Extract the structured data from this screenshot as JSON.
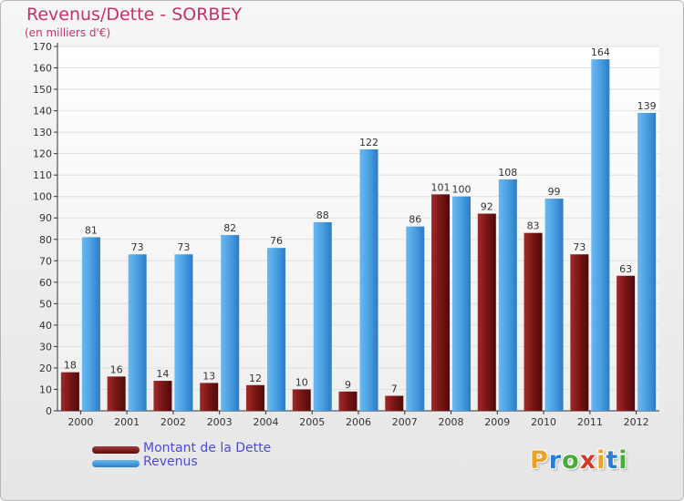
{
  "chart_data": {
    "type": "bar",
    "title": "Revenus/Dette - SORBEY",
    "subtitle": "(en milliers d'€)",
    "xlabel": "",
    "ylabel": "",
    "ylim": [
      0,
      170
    ],
    "ytick_step": 10,
    "categories": [
      "2000",
      "2001",
      "2002",
      "2003",
      "2004",
      "2005",
      "2006",
      "2007",
      "2008",
      "2009",
      "2010",
      "2011",
      "2012"
    ],
    "series": [
      {
        "name": "Montant de la Dette",
        "color": "#8b1a1a",
        "values": [
          18,
          16,
          14,
          13,
          12,
          10,
          9,
          7,
          101,
          92,
          83,
          73,
          63
        ]
      },
      {
        "name": "Revenus",
        "color": "#4a9fe3",
        "values": [
          81,
          73,
          73,
          82,
          76,
          88,
          122,
          86,
          100,
          108,
          99,
          164,
          139
        ]
      }
    ],
    "legend_position": "bottom-left"
  },
  "logo": {
    "letters": [
      "P",
      "r",
      "o",
      "x",
      "i",
      "t",
      "i"
    ],
    "colors": [
      "#e8a32a",
      "#2a7fd4",
      "#4aaa3a",
      "#d43a2a",
      "#e8a32a",
      "#2a7fd4",
      "#4aaa3a"
    ]
  }
}
